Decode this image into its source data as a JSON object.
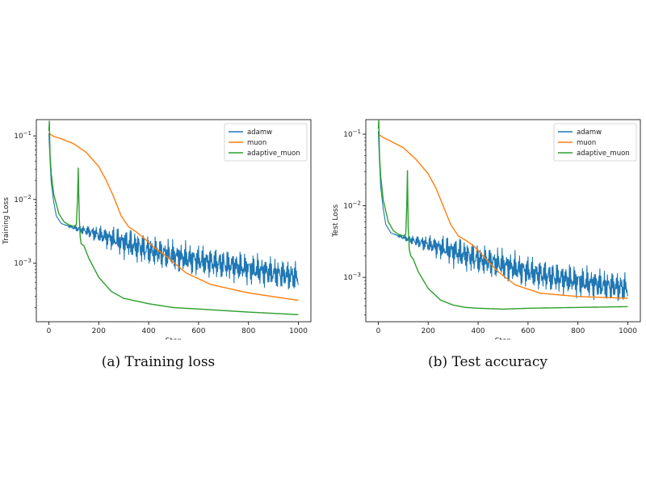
{
  "chart_data": [
    {
      "type": "line",
      "caption": "(a) Training loss",
      "xlabel": "Step",
      "ylabel": "Training Loss",
      "yscale": "log",
      "xlim": [
        -50,
        1050
      ],
      "ylim": [
        0.00012,
        0.18
      ],
      "xticks": [
        0,
        200,
        400,
        600,
        800,
        1000
      ],
      "xtick_labels": [
        "0",
        "200",
        "400",
        "600",
        "800",
        "1000"
      ],
      "yticks": [
        0.001,
        0.01,
        0.1
      ],
      "ytick_labels": [
        "10^-3",
        "10^-2",
        "10^-1"
      ],
      "legend_position": "top-right",
      "series": [
        {
          "name": "adamw",
          "color": "#1f77b4",
          "noise": 0.28,
          "x": [
            0,
            5,
            10,
            20,
            30,
            50,
            80,
            100,
            150,
            200,
            300,
            400,
            500,
            600,
            700,
            800,
            900,
            1000
          ],
          "y": [
            0.11,
            0.04,
            0.018,
            0.009,
            0.0055,
            0.0042,
            0.0038,
            0.0036,
            0.0032,
            0.0028,
            0.0021,
            0.0016,
            0.0013,
            0.0011,
            0.00095,
            0.00082,
            0.0007,
            0.0006
          ]
        },
        {
          "name": "muon",
          "color": "#ff7f0e",
          "noise": 0,
          "x": [
            0,
            20,
            50,
            100,
            150,
            200,
            230,
            260,
            290,
            320,
            350,
            380,
            420,
            480,
            550,
            650,
            800,
            1000
          ],
          "y": [
            0.11,
            0.098,
            0.09,
            0.075,
            0.055,
            0.033,
            0.02,
            0.011,
            0.0055,
            0.0037,
            0.0031,
            0.0025,
            0.0018,
            0.0012,
            0.0007,
            0.00046,
            0.00034,
            0.00026
          ]
        },
        {
          "name": "adaptive_muon",
          "color": "#2ca02c",
          "noise": 0,
          "x": [
            0,
            2,
            5,
            10,
            20,
            40,
            60,
            80,
            100,
            110,
            115,
            118,
            122,
            126,
            130,
            140,
            160,
            200,
            250,
            300,
            400,
            500,
            600,
            800,
            1000
          ],
          "y": [
            0.12,
            0.17,
            0.05,
            0.025,
            0.012,
            0.006,
            0.0045,
            0.004,
            0.0038,
            0.004,
            0.01,
            0.031,
            0.005,
            0.0025,
            0.002,
            0.0019,
            0.0012,
            0.0006,
            0.00036,
            0.00028,
            0.00023,
            0.0002,
            0.00019,
            0.00017,
            0.000155
          ]
        }
      ]
    },
    {
      "type": "line",
      "caption": "(b) Test accuracy",
      "xlabel": "Step",
      "ylabel": "Test Loss",
      "yscale": "log",
      "xlim": [
        -50,
        1050
      ],
      "ylim": [
        0.00024,
        0.16
      ],
      "xticks": [
        0,
        200,
        400,
        600,
        800,
        1000
      ],
      "xtick_labels": [
        "0",
        "200",
        "400",
        "600",
        "800",
        "1000"
      ],
      "yticks": [
        0.001,
        0.01,
        0.1
      ],
      "ytick_labels": [
        "10^-3",
        "10^-2",
        "10^-1"
      ],
      "legend_position": "top-right",
      "series": [
        {
          "name": "adamw",
          "color": "#1f77b4",
          "noise": 0.25,
          "x": [
            0,
            5,
            10,
            20,
            30,
            50,
            80,
            100,
            150,
            200,
            300,
            400,
            500,
            600,
            700,
            800,
            900,
            1000
          ],
          "y": [
            0.11,
            0.04,
            0.018,
            0.009,
            0.0055,
            0.0042,
            0.0038,
            0.0036,
            0.0032,
            0.0029,
            0.0023,
            0.0018,
            0.0015,
            0.0012,
            0.001,
            0.00088,
            0.00078,
            0.0007
          ]
        },
        {
          "name": "muon",
          "color": "#ff7f0e",
          "noise": 0,
          "x": [
            0,
            20,
            50,
            100,
            150,
            200,
            230,
            260,
            290,
            320,
            350,
            380,
            420,
            480,
            550,
            650,
            800,
            1000
          ],
          "y": [
            0.1,
            0.09,
            0.08,
            0.065,
            0.045,
            0.028,
            0.018,
            0.01,
            0.0055,
            0.0038,
            0.0033,
            0.0028,
            0.002,
            0.0012,
            0.00078,
            0.0006,
            0.00054,
            0.00051
          ]
        },
        {
          "name": "adaptive_muon",
          "color": "#2ca02c",
          "noise": 0,
          "x": [
            0,
            2,
            5,
            10,
            20,
            40,
            60,
            80,
            100,
            110,
            114,
            117,
            120,
            124,
            130,
            140,
            160,
            200,
            250,
            300,
            350,
            400,
            500,
            600,
            800,
            1000
          ],
          "y": [
            0.12,
            0.16,
            0.05,
            0.025,
            0.012,
            0.006,
            0.0045,
            0.004,
            0.0038,
            0.004,
            0.01,
            0.031,
            0.005,
            0.0025,
            0.002,
            0.0018,
            0.0012,
            0.0007,
            0.00048,
            0.00041,
            0.00038,
            0.00037,
            0.00036,
            0.00037,
            0.00038,
            0.00039
          ]
        }
      ]
    }
  ]
}
